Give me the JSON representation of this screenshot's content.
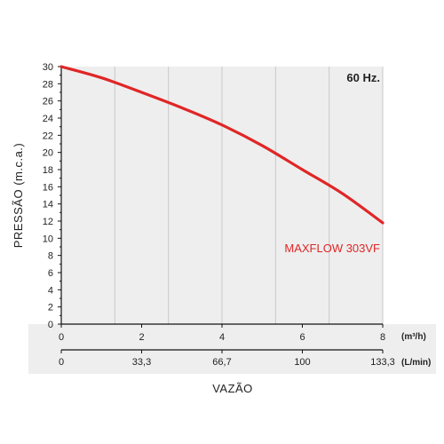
{
  "chart_data": {
    "type": "line",
    "annotation_hz": "60 Hz.",
    "ylabel": "PRESSÃO (m.c.a.)",
    "xlabel": "VAZÃO",
    "x_unit_primary": "(m³/h)",
    "x_unit_secondary": "(L/min)",
    "ylim": [
      0,
      30
    ],
    "y_ticks": [
      "0",
      "2",
      "4",
      "6",
      "8",
      "10",
      "12",
      "14",
      "16",
      "18",
      "20",
      "22",
      "24",
      "26",
      "28",
      "30"
    ],
    "xlim": [
      0,
      8
    ],
    "x_ticks_primary": [
      "0",
      "2",
      "4",
      "6",
      "8"
    ],
    "x_ticks_secondary": [
      "0",
      "33,3",
      "66,7",
      "100",
      "133,3"
    ],
    "grid": true,
    "series": [
      {
        "name": "MAXFLOW 303VF",
        "color": "#e02626",
        "x": [
          0,
          1,
          2,
          3,
          4,
          5,
          6,
          7,
          8
        ],
        "y": [
          30,
          28.7,
          27.0,
          25.2,
          23.2,
          20.8,
          18.0,
          15.2,
          11.8
        ]
      }
    ]
  }
}
